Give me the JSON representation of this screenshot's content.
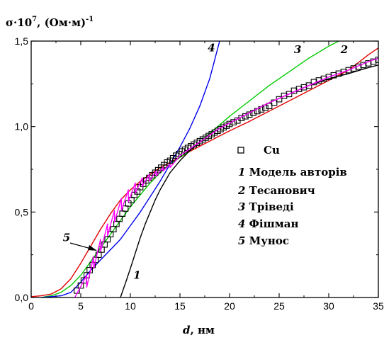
{
  "chart_data": {
    "type": "line",
    "ylabel": "σ·10",
    "ylabel_exp": "7",
    "ylabel_units": ", (Ом·м)",
    "ylabel_units_exp": "-1",
    "xlabel_var": "d",
    "xlabel_units": ", нм",
    "xlim": [
      0,
      35
    ],
    "ylim": [
      0,
      1.5
    ],
    "x_ticks": [
      0,
      5,
      10,
      15,
      20,
      25,
      30,
      35
    ],
    "y_ticks": [
      0.0,
      0.5,
      1.0,
      1.5
    ],
    "y_tick_labels": [
      "0,0",
      "0,5",
      "1,0",
      "1,5"
    ],
    "grid": false,
    "legend_position": "right-middle",
    "legend": [
      {
        "marker": "□",
        "text": "Cu"
      },
      {
        "num": "1",
        "text": "Модель авторів"
      },
      {
        "num": "2",
        "text": "Тесанович"
      },
      {
        "num": "3",
        "text": "Тріведі"
      },
      {
        "num": "4",
        "text": "Фішман"
      },
      {
        "num": "5",
        "text": "Мунос"
      }
    ],
    "curve_labels": [
      {
        "text": "1",
        "x": 10.3,
        "y": 0.11
      },
      {
        "text": "2",
        "x": 31.2,
        "y": 1.43
      },
      {
        "text": "3",
        "x": 26.5,
        "y": 1.43
      },
      {
        "text": "4",
        "x": 17.8,
        "y": 1.44
      },
      {
        "text": "5",
        "x": 3.2,
        "y": 0.33
      }
    ],
    "series": [
      {
        "id": "cu",
        "type": "scatter",
        "color": "#000000",
        "x": [
          4.6,
          5.0,
          5.3,
          5.6,
          5.9,
          6.2,
          6.5,
          6.8,
          7.1,
          7.4,
          7.7,
          8.0,
          8.3,
          8.6,
          8.9,
          9.2,
          9.5,
          9.8,
          10.1,
          10.4,
          10.7,
          11.0,
          11.3,
          11.6,
          11.9,
          12.2,
          12.5,
          12.8,
          13.1,
          13.4,
          13.7,
          14.0,
          14.3,
          14.6,
          14.9,
          15.2,
          15.5,
          15.8,
          16.1,
          16.4,
          16.7,
          17.0,
          17.3,
          17.6,
          17.9,
          18.2,
          18.5,
          18.8,
          19.1,
          19.4,
          19.7,
          20.0,
          20.4,
          20.8,
          21.2,
          21.6,
          22.0,
          22.4,
          22.8,
          23.2,
          23.6,
          24.0,
          24.5,
          25.0,
          25.5,
          26.0,
          26.5,
          27.0,
          27.5,
          28.0,
          28.5,
          29.0,
          29.5,
          30.0,
          30.5,
          31.0,
          31.5,
          32.0,
          32.5,
          33.0,
          33.5,
          34.0,
          34.5,
          35.0
        ],
        "y": [
          0.04,
          0.07,
          0.1,
          0.13,
          0.16,
          0.19,
          0.22,
          0.25,
          0.28,
          0.31,
          0.34,
          0.37,
          0.4,
          0.43,
          0.46,
          0.49,
          0.52,
          0.55,
          0.57,
          0.6,
          0.62,
          0.645,
          0.665,
          0.685,
          0.7,
          0.715,
          0.73,
          0.745,
          0.76,
          0.775,
          0.79,
          0.8,
          0.815,
          0.83,
          0.84,
          0.855,
          0.865,
          0.875,
          0.885,
          0.895,
          0.905,
          0.915,
          0.925,
          0.935,
          0.945,
          0.955,
          0.965,
          0.975,
          0.985,
          0.995,
          1.005,
          1.015,
          1.025,
          1.035,
          1.05,
          1.06,
          1.07,
          1.08,
          1.09,
          1.1,
          1.11,
          1.12,
          1.14,
          1.16,
          1.18,
          1.19,
          1.21,
          1.22,
          1.23,
          1.24,
          1.26,
          1.27,
          1.28,
          1.29,
          1.3,
          1.31,
          1.32,
          1.33,
          1.34,
          1.35,
          1.36,
          1.37,
          1.38,
          1.39
        ]
      },
      {
        "id": "1",
        "type": "line",
        "color": "#000000",
        "x": [
          9.0,
          9.3,
          9.6,
          10.0,
          10.5,
          11.0,
          11.5,
          12.0,
          12.5,
          13.0,
          13.5,
          14.0,
          15.0,
          16.0,
          17.0,
          18.0,
          19.0,
          20.0,
          22.0,
          24.0,
          26.0,
          28.0,
          30.0,
          32.0,
          34.0,
          35.0
        ],
        "y": [
          0.0,
          0.05,
          0.1,
          0.17,
          0.26,
          0.35,
          0.43,
          0.5,
          0.57,
          0.63,
          0.68,
          0.73,
          0.8,
          0.86,
          0.91,
          0.95,
          0.99,
          1.02,
          1.08,
          1.14,
          1.19,
          1.24,
          1.28,
          1.31,
          1.345,
          1.36
        ]
      },
      {
        "id": "2",
        "type": "line",
        "color": "#e00000",
        "x": [
          0,
          1,
          2,
          3,
          4,
          5,
          6,
          7,
          8,
          9,
          10,
          11,
          12,
          13,
          14,
          15,
          16,
          17,
          18,
          19,
          20,
          22,
          24,
          26,
          28,
          30,
          32,
          34,
          35
        ],
        "y": [
          0.005,
          0.01,
          0.02,
          0.05,
          0.11,
          0.2,
          0.3,
          0.4,
          0.49,
          0.57,
          0.63,
          0.68,
          0.72,
          0.76,
          0.79,
          0.82,
          0.855,
          0.885,
          0.915,
          0.945,
          0.975,
          1.03,
          1.09,
          1.15,
          1.21,
          1.27,
          1.33,
          1.42,
          1.46
        ]
      },
      {
        "id": "3",
        "type": "line",
        "color": "#00cc00",
        "x": [
          1,
          2,
          3,
          4,
          5,
          6,
          7,
          8,
          9,
          10,
          11,
          12,
          13,
          14,
          15,
          16,
          17,
          18,
          19,
          20,
          22,
          24,
          26,
          28,
          30,
          31
        ],
        "y": [
          0.0,
          0.01,
          0.03,
          0.07,
          0.13,
          0.21,
          0.29,
          0.37,
          0.45,
          0.53,
          0.6,
          0.67,
          0.73,
          0.78,
          0.82,
          0.86,
          0.91,
          0.96,
          1.01,
          1.06,
          1.15,
          1.24,
          1.32,
          1.4,
          1.47,
          1.5
        ]
      },
      {
        "id": "4",
        "type": "line",
        "color": "#0000ee",
        "x": [
          1,
          2,
          3,
          4,
          5,
          6,
          7,
          8,
          9,
          10,
          11,
          12,
          13,
          14,
          15,
          16,
          17,
          18,
          19
        ],
        "y": [
          0.0,
          0.005,
          0.01,
          0.03,
          0.09,
          0.16,
          0.22,
          0.28,
          0.34,
          0.42,
          0.5,
          0.59,
          0.68,
          0.78,
          0.88,
          0.99,
          1.12,
          1.28,
          1.5
        ]
      },
      {
        "id": "5",
        "type": "line",
        "color": "#ff00ff",
        "x": [
          4.4,
          5.6,
          5.6,
          6.3,
          6.3,
          7.0,
          7.0,
          7.7,
          7.7,
          8.4,
          8.4,
          9.1,
          9.1,
          9.8,
          9.8,
          10.5,
          10.5,
          11.2,
          11.2,
          11.9,
          11.9,
          12.6,
          12.6,
          13.3,
          13.3,
          14.0,
          14.0,
          15,
          16,
          17,
          18,
          19,
          20,
          22,
          24,
          26,
          28,
          30,
          32,
          34,
          35
        ],
        "y": [
          0.0,
          0.13,
          0.06,
          0.24,
          0.17,
          0.34,
          0.27,
          0.43,
          0.36,
          0.51,
          0.44,
          0.58,
          0.51,
          0.63,
          0.56,
          0.67,
          0.61,
          0.7,
          0.65,
          0.72,
          0.68,
          0.74,
          0.71,
          0.76,
          0.74,
          0.78,
          0.76,
          0.83,
          0.87,
          0.91,
          0.95,
          0.99,
          1.02,
          1.08,
          1.14,
          1.19,
          1.24,
          1.29,
          1.33,
          1.38,
          1.4
        ]
      }
    ]
  }
}
